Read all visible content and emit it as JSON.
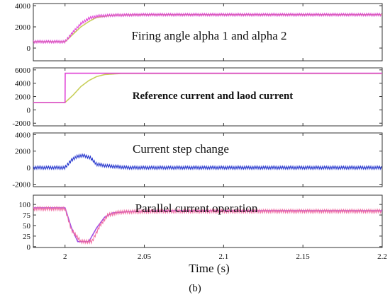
{
  "colors": {
    "magenta": "#e043d6",
    "yellow_green": "#c8cf5a",
    "pink": "#f06aa0",
    "blue": "#2233cc",
    "violet": "#a050e6"
  },
  "x_axis": {
    "label": "Time (s)",
    "xlim": [
      1.98,
      2.2
    ],
    "ticks": [
      2,
      2.05,
      2.1,
      2.15,
      2.2
    ],
    "tick_labels": [
      "2",
      "2.05",
      "2.1",
      "2.15",
      "2.2"
    ]
  },
  "caption": "(b)",
  "chart_data": [
    {
      "type": "line",
      "title": "Firing angle alpha 1 and alpha 2",
      "ylim": [
        -1200,
        4200
      ],
      "yticks": [
        4000,
        2000,
        0
      ],
      "ytick_labels": [
        "4000",
        "2000",
        "0"
      ],
      "series": [
        {
          "color": "yellow_green",
          "style": "smooth",
          "x": [
            1.98,
            2.0,
            2.005,
            2.01,
            2.015,
            2.02,
            2.03,
            2.05,
            2.2
          ],
          "y": [
            600,
            600,
            1300,
            2000,
            2500,
            2900,
            3100,
            3150,
            3150
          ]
        },
        {
          "color": "magenta",
          "style": "ripple",
          "ripple": 120,
          "x": [
            1.98,
            2.0,
            2.005,
            2.01,
            2.015,
            2.02,
            2.03,
            2.05,
            2.2
          ],
          "y": [
            600,
            600,
            1500,
            2300,
            2800,
            3000,
            3100,
            3150,
            3150
          ]
        }
      ]
    },
    {
      "type": "line",
      "title": "Reference current and laod current",
      "ylim": [
        -2400,
        6300
      ],
      "yticks": [
        6000,
        4000,
        2000,
        0,
        -2000
      ],
      "ytick_labels": [
        "6000",
        "4000",
        "2000",
        "0",
        "-2000"
      ],
      "series": [
        {
          "color": "yellow_green",
          "style": "smooth",
          "x": [
            1.98,
            2.0,
            2.005,
            2.01,
            2.015,
            2.02,
            2.025,
            2.035,
            2.2
          ],
          "y": [
            1100,
            1100,
            2200,
            3500,
            4400,
            5000,
            5300,
            5450,
            5450
          ]
        },
        {
          "color": "magenta",
          "style": "smooth",
          "x": [
            1.98,
            2.0,
            2.0001,
            2.2
          ],
          "y": [
            1100,
            1100,
            5500,
            5500
          ]
        }
      ]
    },
    {
      "type": "line",
      "title": "Current step change",
      "ylim": [
        -2300,
        4200
      ],
      "yticks": [
        4000,
        2000,
        0,
        -2000
      ],
      "ytick_labels": [
        "4000",
        "2000",
        "0",
        "-2000"
      ],
      "series": [
        {
          "color": "blue",
          "style": "ripple",
          "ripple": 180,
          "x": [
            1.98,
            2.0,
            2.004,
            2.008,
            2.012,
            2.016,
            2.02,
            2.025,
            2.03,
            2.04,
            2.2
          ],
          "y": [
            0,
            0,
            900,
            1400,
            1450,
            1200,
            400,
            250,
            150,
            0,
            0
          ]
        }
      ]
    },
    {
      "type": "line",
      "title": "Parallel current operation",
      "ylim": [
        -2,
        122
      ],
      "yticks": [
        100,
        75,
        50,
        25,
        0
      ],
      "ytick_labels": [
        "100",
        "75",
        "50",
        "25",
        "0"
      ],
      "series": [
        {
          "color": "violet",
          "style": "smooth",
          "x": [
            1.98,
            2.0,
            2.004,
            2.008,
            2.015,
            2.02,
            2.025,
            2.03,
            2.04,
            2.06,
            2.2
          ],
          "y": [
            92,
            92,
            45,
            12,
            12,
            45,
            70,
            80,
            83,
            85,
            85
          ]
        },
        {
          "color": "pink",
          "style": "ripple",
          "ripple": 4,
          "x": [
            1.98,
            2.0,
            2.004,
            2.01,
            2.017,
            2.022,
            2.027,
            2.035,
            2.06,
            2.2
          ],
          "y": [
            90,
            90,
            40,
            12,
            12,
            50,
            75,
            82,
            84,
            84
          ]
        }
      ]
    }
  ]
}
